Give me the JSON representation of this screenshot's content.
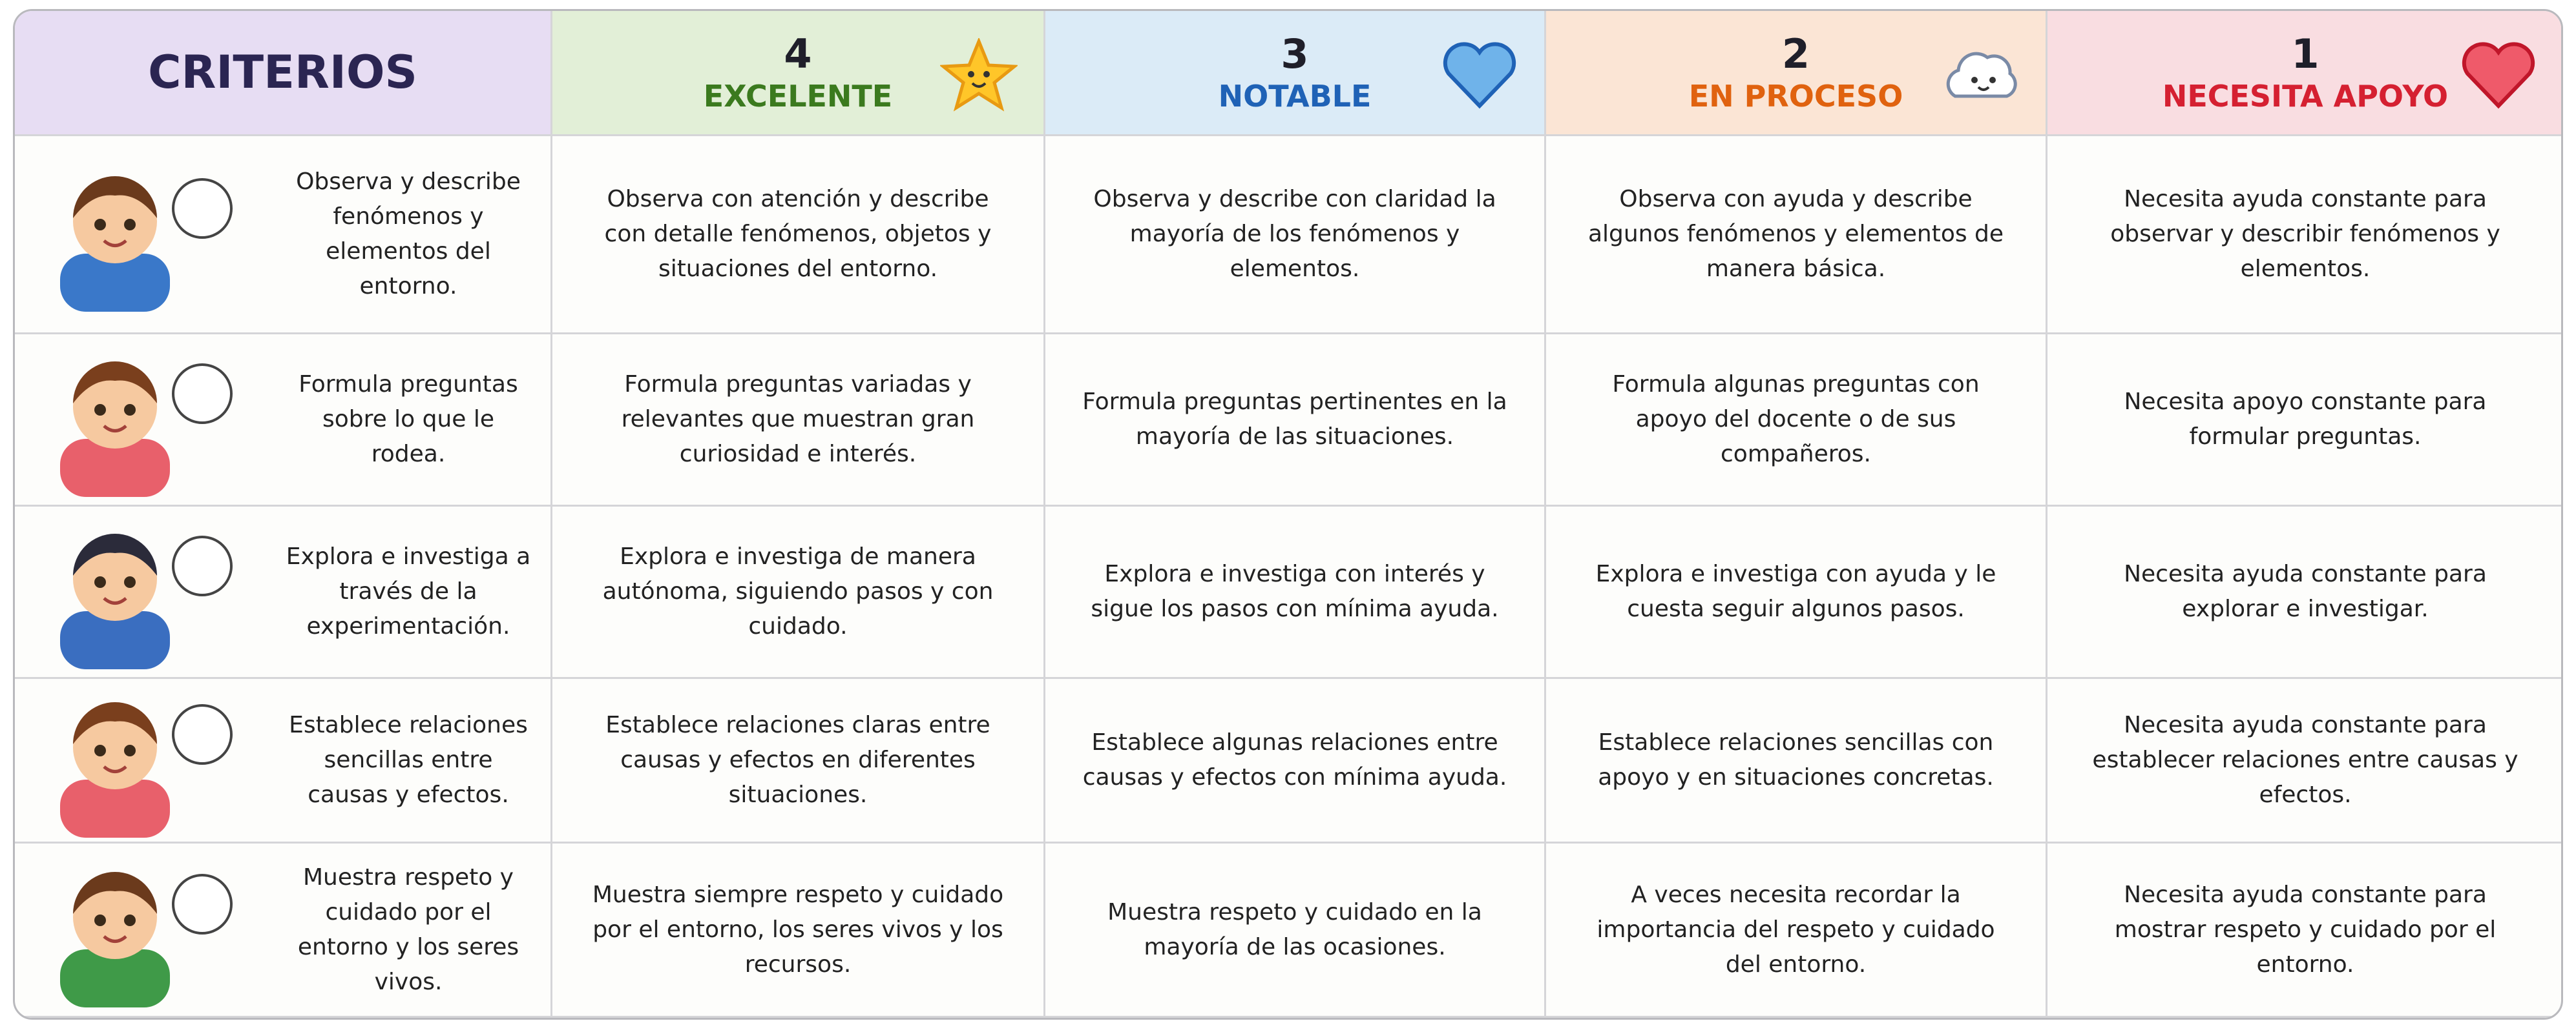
{
  "header": {
    "criterios": "CRITERIOS",
    "levels": [
      {
        "number": 4,
        "label": "EXCELENTE"
      },
      {
        "number": 3,
        "label": "NOTABLE"
      },
      {
        "number": 2,
        "label": "EN PROCESO"
      },
      {
        "number": 1,
        "label": "NECESITA APOYO"
      }
    ]
  },
  "rows": [
    {
      "criterion": "Observa y describe fenómenos y elementos del entorno.",
      "descriptors": [
        "Observa con atención y describe con detalle fenómenos, objetos y situaciones del entorno.",
        "Observa y describe con claridad la mayoría de los fenómenos y elementos.",
        "Observa con ayuda y describe algunos fenómenos y elementos de manera básica.",
        "Necesita ayuda constante para observar y describir fenómenos y elementos."
      ]
    },
    {
      "criterion": "Formula preguntas sobre lo que le rodea.",
      "descriptors": [
        "Formula preguntas variadas y relevantes que muestran gran curiosidad e interés.",
        "Formula preguntas pertinentes en la mayoría de las situaciones.",
        "Formula algunas preguntas con apoyo del docente o de sus compañeros.",
        "Necesita apoyo constante para formular preguntas."
      ]
    },
    {
      "criterion": "Explora e investiga a través de la experimentación.",
      "descriptors": [
        "Explora e investiga de manera autónoma, siguiendo pasos y con cuidado.",
        "Explora e investiga con interés y sigue los pasos con mínima ayuda.",
        "Explora e investiga con ayuda y le cuesta seguir algunos pasos.",
        "Necesita ayuda constante para explorar e investigar."
      ]
    },
    {
      "criterion": "Establece relaciones sencillas entre causas y efectos.",
      "descriptors": [
        "Establece relaciones claras entre causas y efectos en diferentes situaciones.",
        "Establece algunas relaciones entre causas y efectos con mínima ayuda.",
        "Establece relaciones sencillas con apoyo y en situaciones concretas.",
        "Necesita ayuda constante para establecer relaciones entre causas y efectos."
      ]
    },
    {
      "criterion": "Muestra respeto y cuidado por el entorno y los seres vivos.",
      "descriptors": [
        "Muestra siempre respeto y cuidado por el entorno, los seres vivos y los recursos.",
        "Muestra respeto y cuidado en la mayoría de las ocasiones.",
        "A veces necesita recordar la importancia del respeto y cuidado del entorno.",
        "Necesita ayuda constante para mostrar respeto y cuidado por el entorno."
      ]
    }
  ]
}
